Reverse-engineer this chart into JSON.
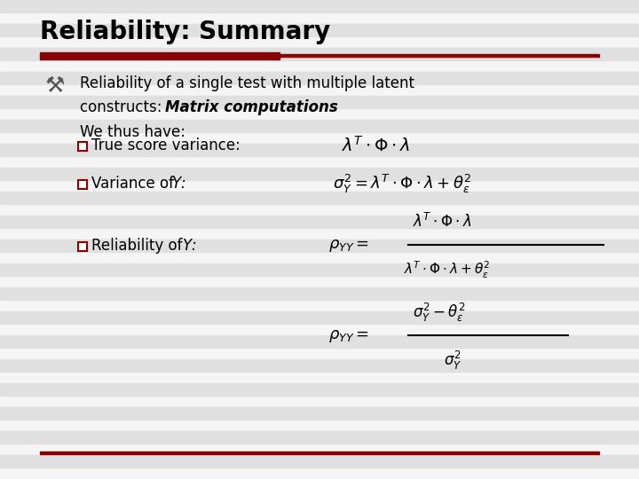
{
  "title": "Reliability: Summary",
  "title_fontsize": 20,
  "background_color": "#f0f0f0",
  "stripe_light": "#f5f5f5",
  "stripe_dark": "#e0e0e0",
  "stripe_count": 40,
  "red_dark": "#8B0000",
  "text_color": "#000000",
  "checkbox_color": "#8B0000",
  "formula1": "$\\lambda^T \\cdot \\Phi \\cdot \\lambda$",
  "formula2": "$\\sigma_Y^2 = \\lambda^T \\cdot \\Phi \\cdot \\lambda + \\theta_\\varepsilon^2$",
  "formula3_num": "$\\lambda^T \\cdot \\Phi \\cdot \\lambda$",
  "formula3_rho": "$\\rho_{YY} = $",
  "formula3_den": "$\\lambda^T \\cdot \\Phi \\cdot \\lambda + \\theta_\\varepsilon^2$",
  "formula4_rho": "$\\rho_{YY} = $",
  "formula4_num": "$\\sigma_Y^2 - \\theta_\\varepsilon^2$",
  "formula4_den": "$\\sigma_Y^2$"
}
